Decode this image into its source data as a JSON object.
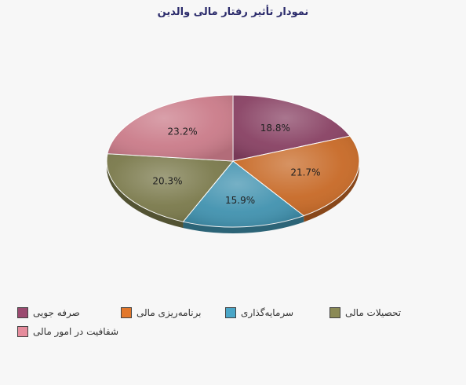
{
  "chart_data": {
    "type": "pie",
    "title": "نمودار تأثیر رفتار مالی والدین",
    "slices": [
      {
        "name": "صرفه جویی",
        "value": 18.8,
        "label": "18.8%",
        "color": "#9b4a70"
      },
      {
        "name": "برنامه‌ریزی  مالی",
        "value": 21.7,
        "label": "21.7%",
        "color": "#e2772b"
      },
      {
        "name": "سرمایه‌گذاری",
        "value": 15.9,
        "label": "15.9%",
        "color": "#4aa6c7"
      },
      {
        "name": "تحصیلات مالی",
        "value": 20.3,
        "label": "20.3%",
        "color": "#8b8a55"
      },
      {
        "name": "شفافیت در امور مالی",
        "value": 23.2,
        "label": "23.2%",
        "color": "#e58c9c"
      }
    ],
    "legend_position": "bottom",
    "style": "3d"
  }
}
